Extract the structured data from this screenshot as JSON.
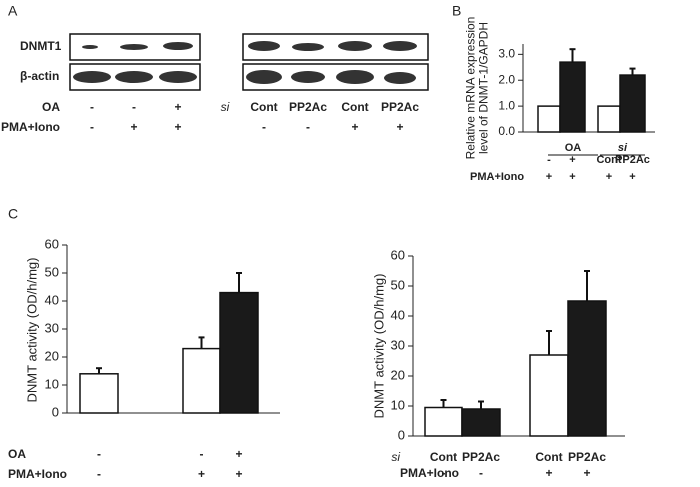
{
  "blot": {
    "panel": "A",
    "rows": [
      "DNMT1",
      "β-actin"
    ],
    "left_conditions": [
      {
        "label": "OA",
        "marks": [
          "-",
          "-",
          "+"
        ]
      },
      {
        "label": "PMA+Iono",
        "marks": [
          "-",
          "+",
          "+"
        ]
      }
    ],
    "right_conditions": [
      {
        "label": "si",
        "marks": [
          "Cont",
          "PP2Ac",
          "Cont",
          "PP2Ac"
        ]
      },
      {
        "marks": [
          "-",
          "-",
          "+",
          "+"
        ]
      }
    ]
  },
  "chart_data": [
    {
      "type": "bar",
      "panel": "B",
      "ylabel": [
        "Relative mRNA expression",
        "level of DNMT-1/GAPDH"
      ],
      "ylim": [
        0,
        3.4
      ],
      "yticks": [
        {
          "value": 0,
          "label": "0.0"
        },
        {
          "value": 1,
          "label": "1.0"
        },
        {
          "value": 2,
          "label": "2.0"
        },
        {
          "value": 3,
          "label": "3.0"
        }
      ],
      "values": [
        1.0,
        2.7,
        1.0,
        2.2
      ],
      "errors": [
        0,
        0.5,
        0,
        0.25
      ],
      "colors": [
        "#ffffff",
        "#1a1a1a",
        "#ffffff",
        "#1a1a1a"
      ],
      "group_labels": [
        "OA",
        "si"
      ],
      "rows": [
        {
          "marks": [
            "-",
            "+",
            "Cont",
            "PP2Ac"
          ]
        },
        {
          "label": "PMA+Iono",
          "marks": [
            "+",
            "+",
            "+",
            "+"
          ]
        }
      ]
    },
    {
      "type": "bar",
      "panel": "C",
      "ylabel": [
        "DNMT activity (OD/h/mg)"
      ],
      "ylim": [
        0,
        60
      ],
      "yticks": [
        0,
        10,
        20,
        30,
        40,
        50,
        60
      ],
      "values": [
        14,
        23,
        43
      ],
      "errors": [
        2,
        4,
        7
      ],
      "colors": [
        "#ffffff",
        "#ffffff",
        "#1a1a1a"
      ],
      "rows": [
        {
          "label": "OA",
          "marks": [
            "-",
            "-",
            "+"
          ]
        },
        {
          "label": "PMA+Iono",
          "marks": [
            "-",
            "+",
            "+"
          ]
        }
      ]
    },
    {
      "type": "bar",
      "ylabel": [
        "DNMT activity (OD/h/mg)"
      ],
      "ylim": [
        0,
        60
      ],
      "yticks": [
        0,
        10,
        20,
        30,
        40,
        50,
        60
      ],
      "values": [
        9.5,
        9,
        27,
        45
      ],
      "errors": [
        2.5,
        2.5,
        8,
        10
      ],
      "colors": [
        "#ffffff",
        "#1a1a1a",
        "#ffffff",
        "#1a1a1a"
      ],
      "rows": [
        {
          "label": "si",
          "marks": [
            "Cont",
            "PP2Ac",
            "Cont",
            "PP2Ac"
          ]
        },
        {
          "label": "PMA+Iono",
          "marks": [
            "-",
            "-",
            "+",
            "+"
          ]
        }
      ]
    }
  ]
}
